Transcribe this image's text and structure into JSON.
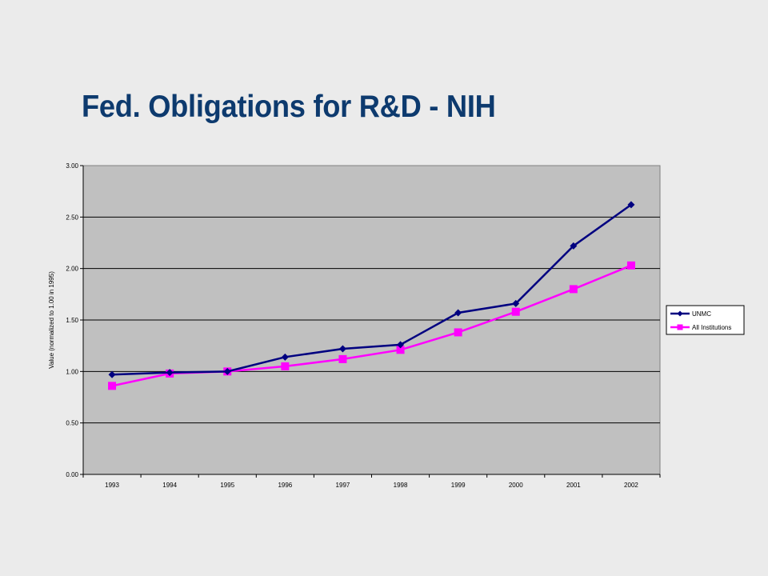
{
  "title": "Fed. Obligations for R&D - NIH",
  "chart_data": {
    "type": "line",
    "categories": [
      "1993",
      "1994",
      "1995",
      "1996",
      "1997",
      "1998",
      "1999",
      "2000",
      "2001",
      "2002"
    ],
    "series": [
      {
        "name": "UNMC",
        "color": "#000080",
        "marker": "diamond",
        "values": [
          0.97,
          0.99,
          1.0,
          1.14,
          1.22,
          1.26,
          1.57,
          1.66,
          2.22,
          2.62
        ]
      },
      {
        "name": "All Institutions",
        "color": "#ff00ff",
        "marker": "square",
        "values": [
          0.86,
          0.98,
          1.0,
          1.05,
          1.12,
          1.21,
          1.38,
          1.58,
          1.8,
          2.03
        ]
      }
    ],
    "yticks": [
      "0.00",
      "0.50",
      "1.00",
      "1.50",
      "2.00",
      "2.50",
      "3.00"
    ],
    "ylim": [
      0,
      3
    ],
    "xlabel": "",
    "ylabel": "Value (normalized to 1.00 in 1995)",
    "grid": true,
    "legend": "right",
    "plot_background": "#c0c0c0"
  }
}
